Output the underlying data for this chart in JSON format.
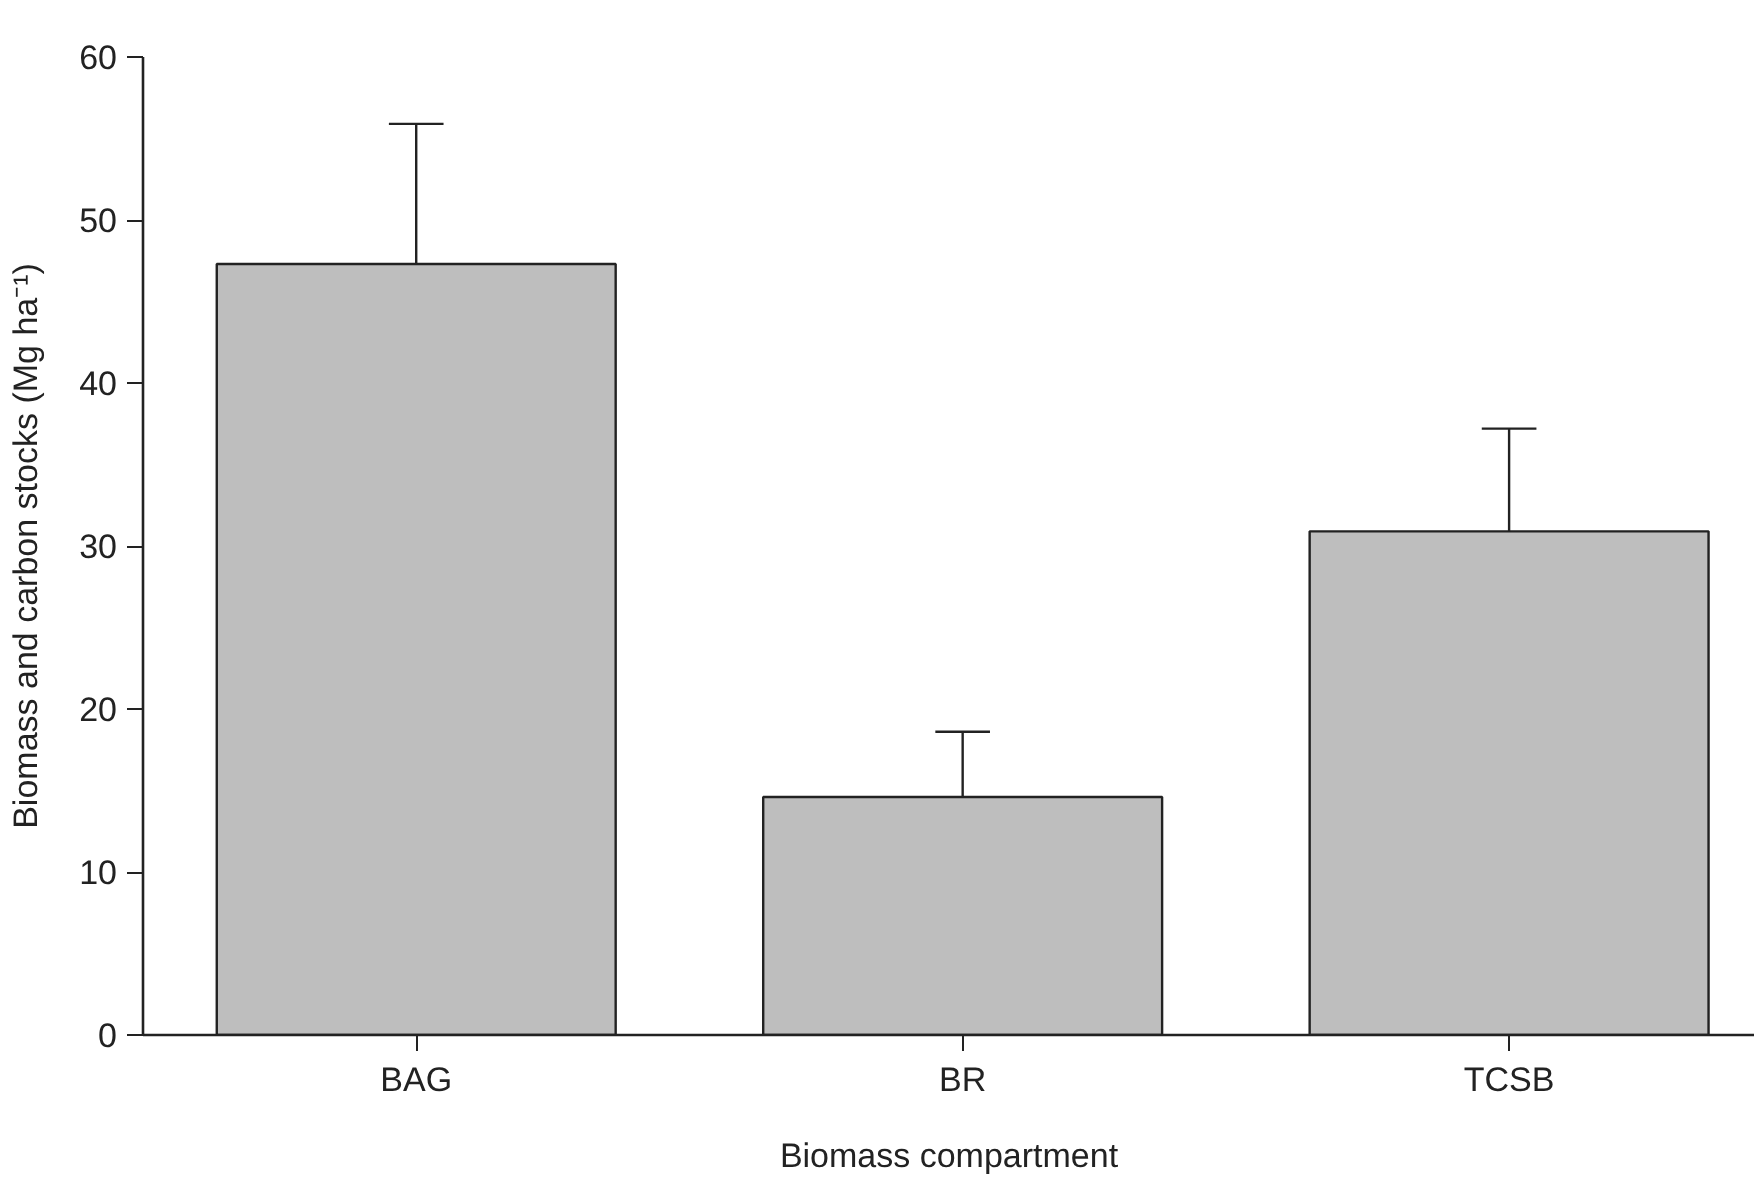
{
  "chart_data": {
    "type": "bar",
    "xlabel": "Biomass compartment",
    "ylabel": "Biomass and carbon stocks (Mg ha⁻¹)",
    "categories": [
      "BAG",
      "BR",
      "TCSB"
    ],
    "values": [
      47.3,
      14.6,
      30.9
    ],
    "errors": [
      [
        47.3,
        55.9
      ],
      [
        14.6,
        18.6
      ],
      [
        30.9,
        37.2
      ]
    ],
    "color": "#bebebe",
    "ylim": [
      0,
      60
    ],
    "yticks": [
      0,
      10,
      20,
      30,
      40,
      50,
      60
    ],
    "grid": false
  }
}
